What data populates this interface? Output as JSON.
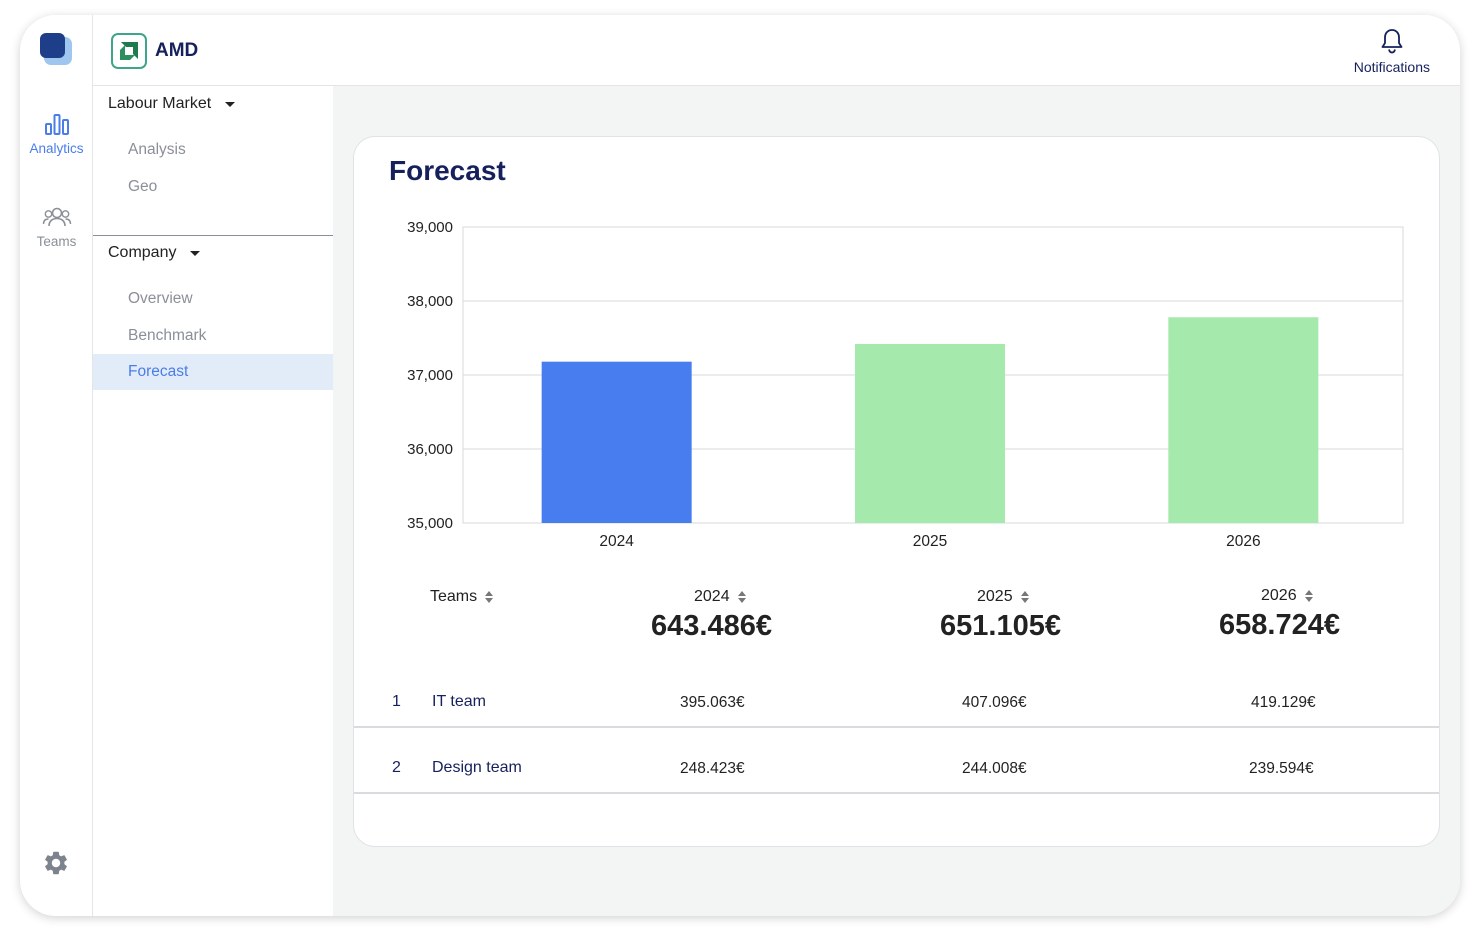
{
  "rail": {
    "analytics_label": "Analytics",
    "teams_label": "Teams",
    "icons": [
      "app-logo-icon",
      "bar-chart-icon",
      "users-icon",
      "gear-icon"
    ]
  },
  "header": {
    "brand": "AMD",
    "notifications_label": "Notifications"
  },
  "subnav": {
    "group1": {
      "label": "Labour Market",
      "items": [
        "Analysis",
        "Geo"
      ]
    },
    "group2": {
      "label": "Company",
      "items": [
        "Overview",
        "Benchmark",
        "Forecast"
      ]
    },
    "active": "Forecast"
  },
  "card": {
    "title": "Forecast"
  },
  "colors": {
    "accent": "#4a7de8",
    "navy": "#16205c",
    "bar_actual": "#487df0",
    "bar_forecast": "#a5e9ac"
  },
  "chart_data": {
    "type": "bar",
    "title": "Forecast",
    "categories": [
      "2024",
      "2025",
      "2026"
    ],
    "values": [
      37180,
      37420,
      37780
    ],
    "ylim": [
      35000,
      39000
    ],
    "yticks": [
      35000,
      36000,
      37000,
      38000,
      39000
    ],
    "ytick_labels": [
      "35,000",
      "36,000",
      "37,000",
      "38,000",
      "39,000"
    ],
    "xlabel": "",
    "ylabel": "",
    "grid": true
  },
  "table": {
    "headers": {
      "teams": "Teams",
      "y2024": "2024",
      "y2025": "2025",
      "y2026": "2026"
    },
    "totals": {
      "y2024": "643.486€",
      "y2025": "651.105€",
      "y2026": "658.724€"
    },
    "rows": [
      {
        "num": "1",
        "name": "IT team",
        "y2024": "395.063€",
        "y2025": "407.096€",
        "y2026": "419.129€"
      },
      {
        "num": "2",
        "name": "Design team",
        "y2024": "248.423€",
        "y2025": "244.008€",
        "y2026": "239.594€"
      }
    ]
  }
}
